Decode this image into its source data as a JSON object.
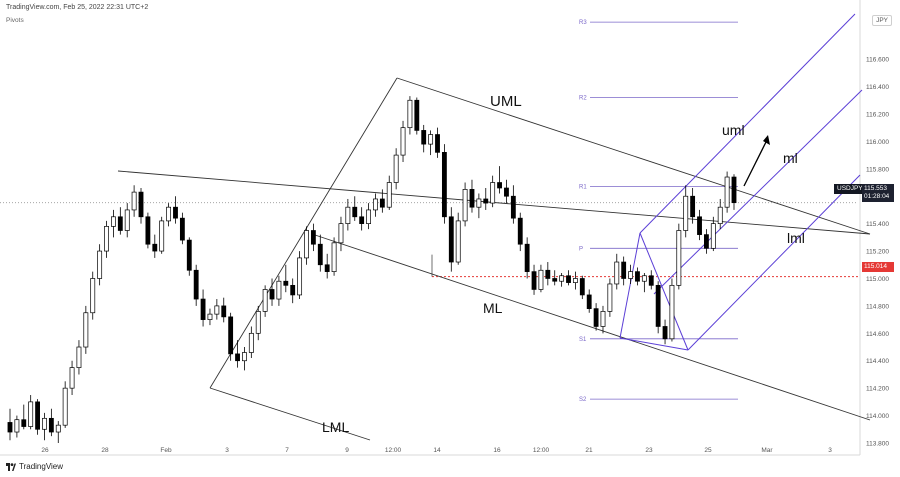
{
  "header": {
    "source": "TradingView.com, Feb 25, 2022 22:31 UTC+2",
    "indicator": "Pivots",
    "scale_button": "JPY",
    "brand": "TradingView"
  },
  "price_tags": {
    "symbol": "USDJPY",
    "last_price": "115.553",
    "countdown": "01:28:04",
    "level_price": "115.014"
  },
  "colors": {
    "up_candle": "#ffffff",
    "down_candle": "#000000",
    "candle_outline": "#000000",
    "trendlines": "#333333",
    "pitchfork": "#5b3fd6",
    "pivots": "#7b68c9",
    "level_line": "#e53935",
    "last_price_line": "#999999"
  },
  "chart_data": {
    "type": "candlestick",
    "instrument": "USDJPY",
    "timeframe": "H4",
    "ylim": [
      113.8,
      116.9
    ],
    "y_ticks": [
      "113.800",
      "114.000",
      "114.200",
      "114.400",
      "114.600",
      "114.800",
      "115.000",
      "115.200",
      "115.400",
      "115.600",
      "115.800",
      "116.000",
      "116.200",
      "116.400",
      "116.600"
    ],
    "x_tick_labels": [
      "26",
      "28",
      "Feb",
      "3",
      "7",
      "9",
      "12:00",
      "14",
      "16",
      "12:00",
      "21",
      "23",
      "25",
      "Mar",
      "3"
    ],
    "last_price": 115.553,
    "horizontal_level": 115.014,
    "pivot_levels": [
      {
        "name": "R3",
        "value": 116.87
      },
      {
        "name": "R2",
        "value": 116.32
      },
      {
        "name": "R1",
        "value": 115.67
      },
      {
        "name": "P",
        "value": 115.22
      },
      {
        "name": "S1",
        "value": 114.56
      },
      {
        "name": "S2",
        "value": 114.12
      }
    ],
    "annotations": [
      {
        "text": "UML",
        "kind": "line-label"
      },
      {
        "text": "ML",
        "kind": "line-label"
      },
      {
        "text": "LML",
        "kind": "line-label"
      },
      {
        "text": "uml",
        "kind": "line-label"
      },
      {
        "text": "ml",
        "kind": "line-label"
      },
      {
        "text": "lml",
        "kind": "line-label"
      }
    ],
    "candles_ohlc": [
      [
        113.95,
        114.05,
        113.82,
        113.88
      ],
      [
        113.88,
        114.0,
        113.84,
        113.97
      ],
      [
        113.97,
        114.08,
        113.9,
        113.92
      ],
      [
        113.92,
        114.15,
        113.9,
        114.1
      ],
      [
        114.1,
        114.12,
        113.86,
        113.9
      ],
      [
        113.9,
        114.02,
        113.82,
        113.98
      ],
      [
        113.98,
        114.05,
        113.85,
        113.88
      ],
      [
        113.88,
        113.96,
        113.8,
        113.93
      ],
      [
        113.93,
        114.25,
        113.91,
        114.2
      ],
      [
        114.2,
        114.4,
        114.15,
        114.35
      ],
      [
        114.35,
        114.55,
        114.3,
        114.5
      ],
      [
        114.5,
        114.8,
        114.45,
        114.75
      ],
      [
        114.75,
        115.05,
        114.7,
        115.0
      ],
      [
        115.0,
        115.25,
        114.95,
        115.2
      ],
      [
        115.2,
        115.42,
        115.15,
        115.38
      ],
      [
        115.38,
        115.5,
        115.3,
        115.45
      ],
      [
        115.45,
        115.52,
        115.32,
        115.35
      ],
      [
        115.35,
        115.55,
        115.3,
        115.5
      ],
      [
        115.5,
        115.68,
        115.45,
        115.63
      ],
      [
        115.63,
        115.66,
        115.4,
        115.45
      ],
      [
        115.45,
        115.48,
        115.22,
        115.25
      ],
      [
        115.25,
        115.32,
        115.15,
        115.2
      ],
      [
        115.2,
        115.45,
        115.18,
        115.42
      ],
      [
        115.42,
        115.55,
        115.38,
        115.52
      ],
      [
        115.52,
        115.6,
        115.4,
        115.44
      ],
      [
        115.44,
        115.48,
        115.25,
        115.28
      ],
      [
        115.28,
        115.3,
        115.02,
        115.06
      ],
      [
        115.06,
        115.1,
        114.8,
        114.85
      ],
      [
        114.85,
        114.92,
        114.65,
        114.7
      ],
      [
        114.7,
        114.78,
        114.66,
        114.74
      ],
      [
        114.74,
        114.85,
        114.7,
        114.8
      ],
      [
        114.8,
        114.86,
        114.68,
        114.72
      ],
      [
        114.72,
        114.75,
        114.4,
        114.45
      ],
      [
        114.45,
        114.55,
        114.35,
        114.4
      ],
      [
        114.4,
        114.5,
        114.33,
        114.46
      ],
      [
        114.46,
        114.65,
        114.42,
        114.6
      ],
      [
        114.6,
        114.8,
        114.55,
        114.76
      ],
      [
        114.76,
        114.95,
        114.72,
        114.92
      ],
      [
        114.92,
        115.0,
        114.8,
        114.85
      ],
      [
        114.85,
        115.02,
        114.8,
        114.98
      ],
      [
        114.98,
        115.1,
        114.9,
        114.95
      ],
      [
        114.95,
        115.0,
        114.82,
        114.88
      ],
      [
        114.88,
        115.2,
        114.85,
        115.15
      ],
      [
        115.15,
        115.38,
        115.1,
        115.35
      ],
      [
        115.35,
        115.4,
        115.2,
        115.25
      ],
      [
        115.25,
        115.32,
        115.05,
        115.1
      ],
      [
        115.1,
        115.18,
        115.0,
        115.05
      ],
      [
        115.05,
        115.3,
        115.02,
        115.26
      ],
      [
        115.26,
        115.45,
        115.2,
        115.4
      ],
      [
        115.4,
        115.58,
        115.35,
        115.52
      ],
      [
        115.52,
        115.6,
        115.42,
        115.45
      ],
      [
        115.45,
        115.52,
        115.35,
        115.4
      ],
      [
        115.4,
        115.55,
        115.36,
        115.5
      ],
      [
        115.5,
        115.62,
        115.45,
        115.58
      ],
      [
        115.58,
        115.65,
        115.48,
        115.52
      ],
      [
        115.52,
        115.75,
        115.5,
        115.7
      ],
      [
        115.7,
        115.95,
        115.65,
        115.9
      ],
      [
        115.9,
        116.15,
        115.85,
        116.1
      ],
      [
        116.1,
        116.33,
        116.05,
        116.3
      ],
      [
        116.3,
        116.32,
        116.05,
        116.08
      ],
      [
        116.08,
        116.12,
        115.92,
        115.98
      ],
      [
        115.98,
        116.08,
        115.9,
        116.05
      ],
      [
        116.05,
        116.1,
        115.88,
        115.92
      ],
      [
        115.92,
        115.98,
        115.4,
        115.45
      ],
      [
        115.45,
        115.52,
        115.05,
        115.12
      ],
      [
        115.12,
        115.48,
        115.1,
        115.42
      ],
      [
        115.42,
        115.7,
        115.38,
        115.65
      ],
      [
        115.65,
        115.72,
        115.48,
        115.52
      ],
      [
        115.52,
        115.62,
        115.44,
        115.58
      ],
      [
        115.58,
        115.66,
        115.5,
        115.55
      ],
      [
        115.55,
        115.75,
        115.52,
        115.7
      ],
      [
        115.7,
        115.82,
        115.62,
        115.66
      ],
      [
        115.66,
        115.72,
        115.55,
        115.6
      ],
      [
        115.6,
        115.68,
        115.4,
        115.44
      ],
      [
        115.44,
        115.48,
        115.2,
        115.25
      ],
      [
        115.25,
        115.3,
        115.0,
        115.05
      ],
      [
        115.05,
        115.1,
        114.88,
        114.92
      ],
      [
        114.92,
        115.1,
        114.9,
        115.06
      ],
      [
        115.06,
        115.12,
        114.95,
        115.0
      ],
      [
        115.0,
        115.06,
        114.95,
        114.98
      ],
      [
        114.98,
        115.04,
        114.94,
        115.02
      ],
      [
        115.02,
        115.06,
        114.95,
        114.97
      ],
      [
        114.97,
        115.05,
        114.92,
        115.0
      ],
      [
        115.0,
        115.02,
        114.85,
        114.88
      ],
      [
        114.88,
        114.92,
        114.75,
        114.78
      ],
      [
        114.78,
        114.82,
        114.62,
        114.65
      ],
      [
        114.65,
        114.8,
        114.6,
        114.76
      ],
      [
        114.76,
        115.0,
        114.72,
        114.96
      ],
      [
        114.96,
        115.18,
        114.92,
        115.12
      ],
      [
        115.12,
        115.16,
        114.95,
        115.0
      ],
      [
        115.0,
        115.1,
        114.96,
        115.05
      ],
      [
        115.05,
        115.08,
        114.95,
        114.98
      ],
      [
        114.98,
        115.04,
        114.9,
        115.02
      ],
      [
        115.02,
        115.06,
        114.92,
        114.95
      ],
      [
        114.95,
        114.98,
        114.6,
        114.65
      ],
      [
        114.65,
        114.7,
        114.52,
        114.56
      ],
      [
        114.56,
        115.0,
        114.54,
        114.95
      ],
      [
        114.95,
        115.4,
        114.92,
        115.35
      ],
      [
        115.35,
        115.68,
        115.3,
        115.6
      ],
      [
        115.6,
        115.66,
        115.4,
        115.45
      ],
      [
        115.45,
        115.5,
        115.28,
        115.32
      ],
      [
        115.32,
        115.36,
        115.18,
        115.22
      ],
      [
        115.22,
        115.45,
        115.2,
        115.4
      ],
      [
        115.4,
        115.58,
        115.36,
        115.52
      ],
      [
        115.52,
        115.78,
        115.48,
        115.74
      ],
      [
        115.74,
        115.76,
        115.5,
        115.553
      ]
    ]
  }
}
